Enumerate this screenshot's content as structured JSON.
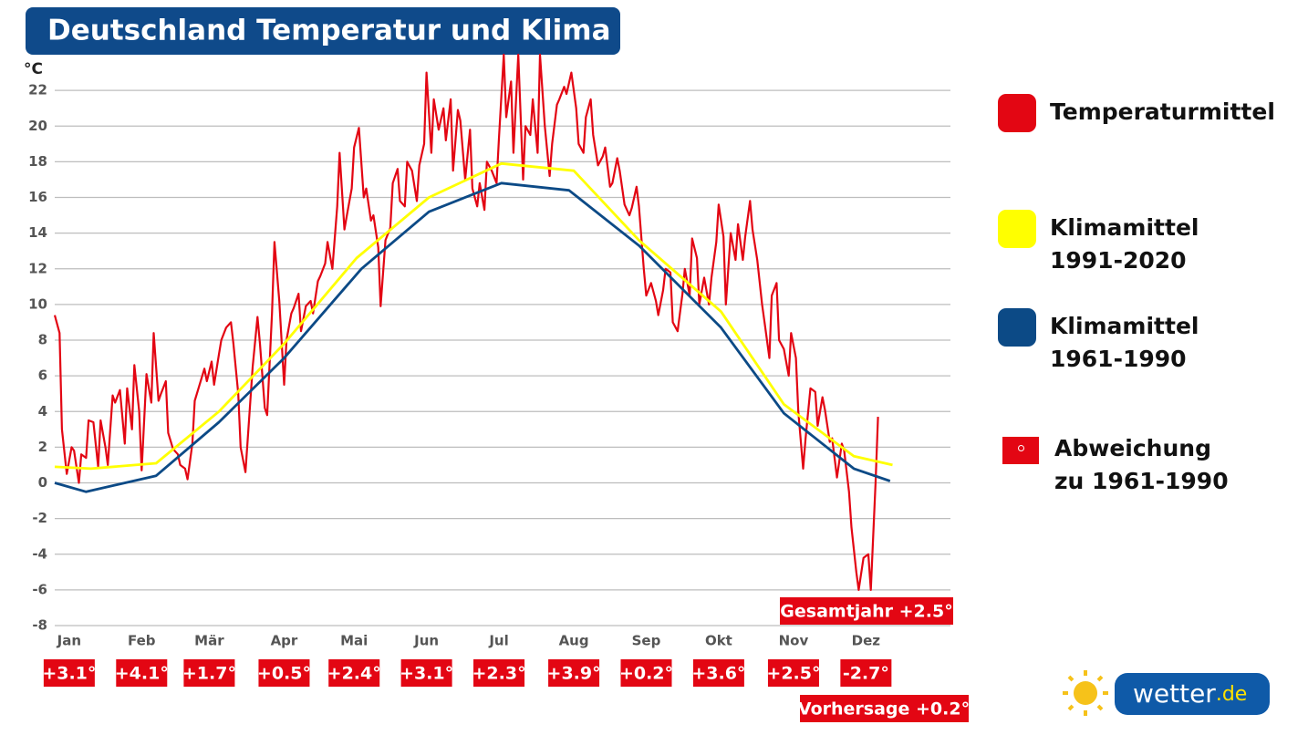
{
  "chart_data": {
    "type": "line",
    "title": "Deutschland Temperatur und Klima",
    "y_unit": "°C",
    "xlim": [
      1,
      372
    ],
    "xticks": [
      {
        "value": 7,
        "label": "Jan"
      },
      {
        "value": 37,
        "label": "Feb"
      },
      {
        "value": 65,
        "label": "Mär"
      },
      {
        "value": 96,
        "label": "Apr"
      },
      {
        "value": 125,
        "label": "Mai"
      },
      {
        "value": 155,
        "label": "Jun"
      },
      {
        "value": 185,
        "label": "Jul"
      },
      {
        "value": 216,
        "label": "Aug"
      },
      {
        "value": 246,
        "label": "Sep"
      },
      {
        "value": 276,
        "label": "Okt"
      },
      {
        "value": 307,
        "label": "Nov"
      },
      {
        "value": 337,
        "label": "Dez"
      }
    ],
    "ylim": [
      -8,
      24
    ],
    "yticks": [
      -8,
      -6,
      -4,
      -2,
      0,
      2,
      4,
      6,
      8,
      10,
      12,
      14,
      16,
      18,
      20,
      22
    ],
    "grid": true,
    "series": [
      {
        "name": "Temperaturmittel",
        "color": "#e30613",
        "x": [
          1,
          3,
          4,
          6,
          8,
          9,
          11,
          12,
          14,
          15,
          17,
          19,
          20,
          22,
          23,
          25,
          26,
          28,
          30,
          31,
          33,
          34,
          36,
          37,
          39,
          41,
          42,
          44,
          45,
          47,
          48,
          50,
          52,
          53,
          55,
          56,
          58,
          59,
          61,
          63,
          64,
          66,
          67,
          69,
          70,
          72,
          74,
          75,
          77,
          78,
          80,
          81,
          83,
          85,
          86,
          88,
          89,
          91,
          92,
          94,
          96,
          97,
          99,
          100,
          102,
          103,
          105,
          107,
          108,
          110,
          111,
          113,
          114,
          116,
          118,
          119,
          121,
          122,
          124,
          125,
          127,
          129,
          130,
          132,
          133,
          135,
          136,
          138,
          140,
          141,
          143,
          144,
          146,
          147,
          149,
          151,
          152,
          154,
          155,
          157,
          158,
          160,
          162,
          163,
          165,
          166,
          168,
          169,
          171,
          173,
          174,
          176,
          177,
          179,
          180,
          182,
          184,
          185,
          187,
          188,
          190,
          191,
          193,
          195,
          196,
          198,
          199,
          201,
          202,
          204,
          206,
          207,
          209,
          210,
          212,
          213,
          215,
          217,
          218,
          220,
          221,
          223,
          224,
          226,
          228,
          229,
          231,
          232,
          234,
          235,
          237,
          239,
          240,
          242,
          243,
          245,
          246,
          248,
          250,
          251,
          253,
          254,
          256,
          257,
          259,
          261,
          262,
          264,
          265,
          267,
          268,
          270,
          272,
          273,
          275,
          276,
          278,
          279,
          281,
          283,
          284,
          286,
          287,
          289,
          290,
          292,
          294,
          295,
          297,
          298,
          300,
          301,
          303,
          305,
          306,
          308,
          309,
          311,
          312,
          314,
          316,
          317,
          319,
          320,
          322,
          323,
          325,
          327,
          328,
          330,
          331,
          333,
          334,
          336,
          338,
          339,
          341,
          342
        ],
        "values": [
          9.4,
          8.4,
          3,
          0.5,
          2,
          1.8,
          0,
          1.6,
          1.4,
          3.5,
          3.4,
          0.9,
          3.5,
          2,
          1,
          4.9,
          4.5,
          5.2,
          2.2,
          5.3,
          3.0,
          6.6,
          4.0,
          0.7,
          6.1,
          4.5,
          8.4,
          4.6,
          5.0,
          5.7,
          2.8,
          1.9,
          1.6,
          1.0,
          0.8,
          0.2,
          2.2,
          4.6,
          5.5,
          6.4,
          5.7,
          6.8,
          5.5,
          7.2,
          8.0,
          8.7,
          9.0,
          7.8,
          5.0,
          2.0,
          0.6,
          2.6,
          6.5,
          9.3,
          7.8,
          4.2,
          3.8,
          9.5,
          13.5,
          10.2,
          5.5,
          8.0,
          9.5,
          9.8,
          10.6,
          8.5,
          9.9,
          10.2,
          9.5,
          11.3,
          11.6,
          12.3,
          13.5,
          12.0,
          15.5,
          18.5,
          14.2,
          15.0,
          16.5,
          18.8,
          19.9,
          16.0,
          16.5,
          14.7,
          15.0,
          13.2,
          9.9,
          13.6,
          14.3,
          16.8,
          17.6,
          15.8,
          15.5,
          18.0,
          17.5,
          15.8,
          17.8,
          19.0,
          23.0,
          18.5,
          21.5,
          19.8,
          21.0,
          19.2,
          21.5,
          17.5,
          20.9,
          20.3,
          17.0,
          19.8,
          16.5,
          15.5,
          16.8,
          15.3,
          18.0,
          17.5,
          16.8,
          19.3,
          24.0,
          20.5,
          22.5,
          18.5,
          24.0,
          17.0,
          20.0,
          19.5,
          21.5,
          18.5,
          24.0,
          20.0,
          17.2,
          19.0,
          21.2,
          21.5,
          22.2,
          21.8,
          23.0,
          21.0,
          19.0,
          18.5,
          20.5,
          21.5,
          19.5,
          17.8,
          18.3,
          18.8,
          16.6,
          16.8,
          18.2,
          17.5,
          15.6,
          15.0,
          15.4,
          16.6,
          15.5,
          12.0,
          10.5,
          11.2,
          10.2,
          9.4,
          10.8,
          12.0,
          11.8,
          9.0,
          8.5,
          10.6,
          12.0,
          10.5,
          13.7,
          12.6,
          10.0,
          11.5,
          10.0,
          11.5,
          13.5,
          15.6,
          13.8,
          10.0,
          14.0,
          12.5,
          14.5,
          12.5,
          13.8,
          15.8,
          14.2,
          12.5,
          10.0,
          9.0,
          7.0,
          10.5,
          11.2,
          8.0,
          7.5,
          6.0,
          8.4,
          7.0,
          4.0,
          0.8,
          2.5,
          5.3,
          5.1,
          3.2,
          4.8,
          4.1,
          2.3,
          2.5,
          0.3,
          2.2,
          1.8,
          -0.5,
          -2.5,
          -5.0,
          -6.0,
          -4.2,
          -4.0,
          -6.0,
          0.0,
          3.7
        ]
      },
      {
        "name": "Klimamittel 1991-2020",
        "color": "#ffff00",
        "x": [
          1,
          16,
          43,
          69,
          96,
          126,
          156,
          186,
          216,
          243,
          277,
          303,
          332,
          348
        ],
        "values": [
          0.9,
          0.8,
          1.1,
          4.0,
          7.8,
          12.6,
          16.0,
          17.9,
          17.5,
          13.6,
          9.6,
          4.4,
          1.5,
          1.0
        ]
      },
      {
        "name": "Klimamittel 1961-1990",
        "color": "#0c4a86",
        "x": [
          1,
          14,
          43,
          69,
          96,
          128,
          156,
          186,
          214,
          243,
          277,
          303,
          332,
          347
        ],
        "values": [
          0,
          -0.5,
          0.4,
          3.4,
          7.0,
          12.0,
          15.2,
          16.8,
          16.4,
          13.3,
          8.7,
          3.9,
          0.8,
          0.1
        ]
      }
    ],
    "anomalies": {
      "name": "Abweichung zu 1961-1990",
      "color": "#e30613",
      "values": [
        3.1,
        4.1,
        1.7,
        0.5,
        2.4,
        3.1,
        2.3,
        3.9,
        0.2,
        3.6,
        2.5,
        -2.7
      ],
      "value_labels": [
        "+3.1°",
        "+4.1°",
        "+1.7°",
        "+0.5°",
        "+2.4°",
        "+3.1°",
        "+2.3°",
        "+3.9°",
        "+0.2°",
        "+3.6°",
        "+2.5°",
        "-2.7°"
      ]
    },
    "annotations": [
      "Gesamtjahr +2.5°",
      "Vorhersage +0.2°"
    ],
    "logo": {
      "name": "wetter",
      "suffix": ".de"
    }
  }
}
